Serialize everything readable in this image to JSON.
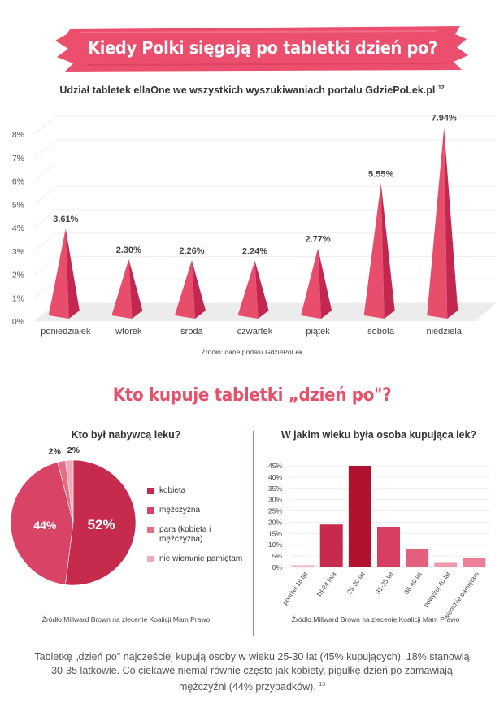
{
  "header": {
    "title": "Kiedy Polki sięgają po tabletki dzień po?",
    "subtitle": "Udział tabletek ellaOne we wszystkich wyszukiwaniach portalu GdziePoLek.pl",
    "subtitle_ref": "12"
  },
  "colors": {
    "banner": "#ec4f6e",
    "pyramid_light": "#e84e6c",
    "pyramid_dark": "#c32750",
    "accent": "#e8506a",
    "pie": [
      "#c62a4d",
      "#d94366",
      "#e56d86",
      "#f0a9b8"
    ],
    "bars": [
      "#f3b8c5",
      "#c62a4d",
      "#b0122f",
      "#d83d62",
      "#e2607e",
      "#ef99ac",
      "#ec7f97"
    ]
  },
  "section2_title": "Kto kupuje tabletki  „dzień po\"?",
  "footer": {
    "text": "Tabletkę „dzień po\" najczęściej kupują osoby w wieku 25-30 lat (45% kupujących). 18% stanowią 30-35 latkowie. Co ciekawe niemal równie często jak kobiety, pigułkę dzień po zamawiają mężczyźni (44% przypadków).",
    "ref": "13"
  },
  "chart_data": [
    {
      "type": "bar",
      "categories": [
        "poniedziałek",
        "wtorek",
        "środa",
        "czwartek",
        "piątek",
        "sobota",
        "niedziela"
      ],
      "values": [
        3.61,
        2.3,
        2.26,
        2.24,
        2.77,
        5.55,
        7.94
      ],
      "value_labels": [
        "3.61%",
        "2.30%",
        "2.26%",
        "2.24%",
        "2.77%",
        "5.55%",
        "7.94%"
      ],
      "y_ticks": [
        "0%",
        "1%",
        "2%",
        "3%",
        "4%",
        "5%",
        "6%",
        "7%",
        "8%"
      ],
      "ylim": [
        0,
        8
      ],
      "grid": true,
      "source": "Źródło: dane portalu GdziePoLek"
    },
    {
      "type": "pie",
      "title": "Kto był nabywcą leku?",
      "labels": [
        "kobieta",
        "mężczyzna",
        "para (kobieta i mężczyzna)",
        "nie wiem/nie pamiętam"
      ],
      "values": [
        52,
        44,
        2,
        2
      ],
      "value_labels": [
        "52%",
        "44%",
        "2%",
        "2%"
      ],
      "legend": "right",
      "source": "Źródło:Millward Brown na zlecenie Koalicji Mam Prawo"
    },
    {
      "type": "bar",
      "title": "W jakim wieku była osoba kupująca lek?",
      "categories": [
        "poniżej 18 lat",
        "18-24 lata",
        "25-30 lat",
        "31-35 lat",
        "36-40 lat",
        "powyżej 40 lat",
        "nie wiem/nie pamiętam"
      ],
      "values": [
        1,
        19,
        45,
        18,
        8,
        2,
        4
      ],
      "y_ticks": [
        "0%",
        "5%",
        "10%",
        "15%",
        "20%",
        "25%",
        "30%",
        "35%",
        "40%",
        "45%"
      ],
      "ylim": [
        0,
        45
      ],
      "grid": true,
      "source": "Źródło:Millward Brown na zlecenie Koalicji Mam Prawo"
    }
  ]
}
